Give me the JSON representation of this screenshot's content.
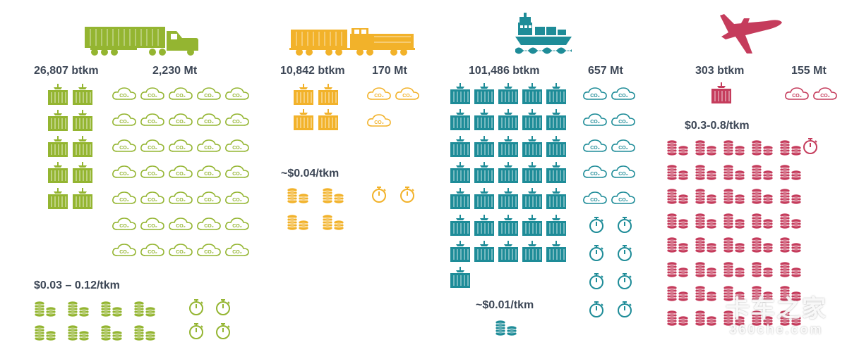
{
  "colors": {
    "truck": "#94b531",
    "rail": "#f2b22a",
    "ship": "#1e8c98",
    "air": "#c53c5c",
    "text": "#3d4756"
  },
  "icons": {
    "truck": "truck-icon",
    "rail": "train-icon",
    "ship": "cargo-ship-icon",
    "air": "airplane-icon",
    "container": "container-icon",
    "cloud": "co2-cloud-icon",
    "coins": "coin-stack-icon",
    "stopwatch": "stopwatch-icon"
  },
  "co2_label": "CO₂",
  "modes": {
    "truck": {
      "btkm": "26,807 btkm",
      "mt": "2,230 Mt",
      "cost": "$0.03 – 0.12/tkm",
      "containers": 10,
      "clouds": 35,
      "coins": 8,
      "stopwatches": 4
    },
    "rail": {
      "btkm": "10,842 btkm",
      "mt": "170 Mt",
      "cost": "~$0.04/tkm",
      "containers": 4,
      "clouds": 3,
      "coins": 4,
      "stopwatches": 2
    },
    "ship": {
      "btkm": "101,486 btkm",
      "mt": "657 Mt",
      "cost": "~$0.01/tkm",
      "containers": 36,
      "clouds": 10,
      "coins": 1,
      "stopwatches": 8
    },
    "air": {
      "btkm": "303 btkm",
      "mt": "155 Mt",
      "cost": "$0.3-0.8/tkm",
      "containers": 1,
      "clouds": 2,
      "coins": 40,
      "stopwatches": 1
    }
  },
  "watermark": {
    "text": "卡车之家",
    "url": "360che.com"
  }
}
